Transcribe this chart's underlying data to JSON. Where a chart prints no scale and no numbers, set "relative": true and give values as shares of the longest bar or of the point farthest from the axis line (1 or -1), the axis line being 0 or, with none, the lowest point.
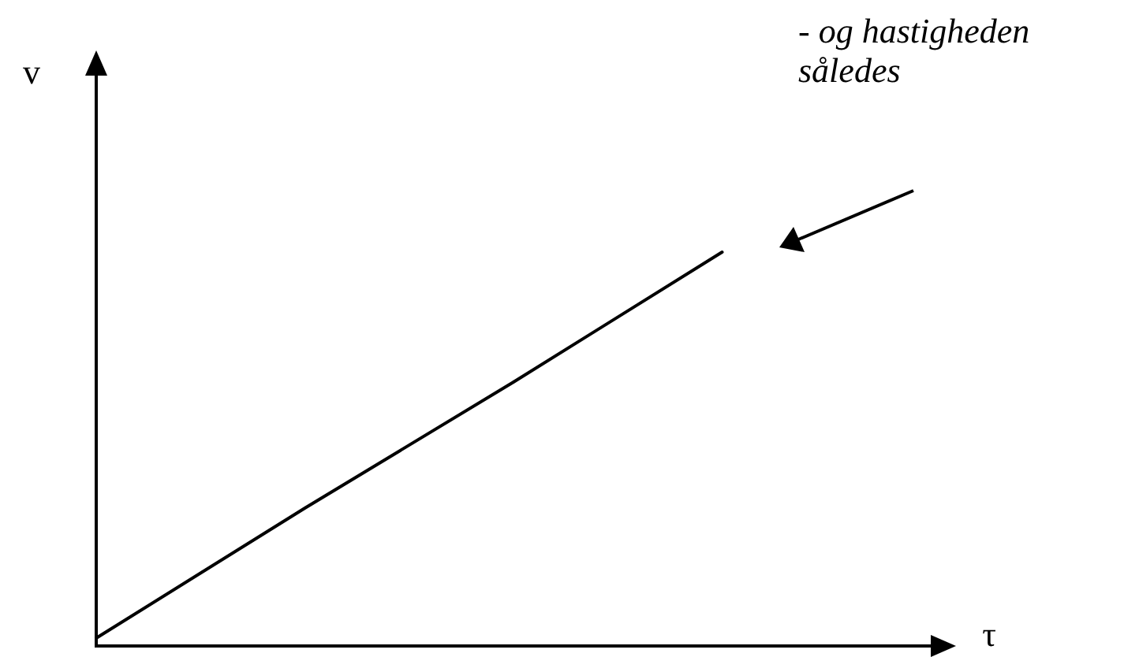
{
  "chart_data": {
    "type": "line",
    "relative": true,
    "xlabel": "τ",
    "ylabel": "v",
    "categories": [
      null,
      null,
      null,
      null,
      null
    ],
    "series": [
      {
        "color": "#000000",
        "values": [
          0.02,
          0.35,
          0.67,
          1,
          null
        ]
      }
    ],
    "annotations": [
      "- og hastigheden således"
    ],
    "marker": "none",
    "line_style": "solid"
  }
}
